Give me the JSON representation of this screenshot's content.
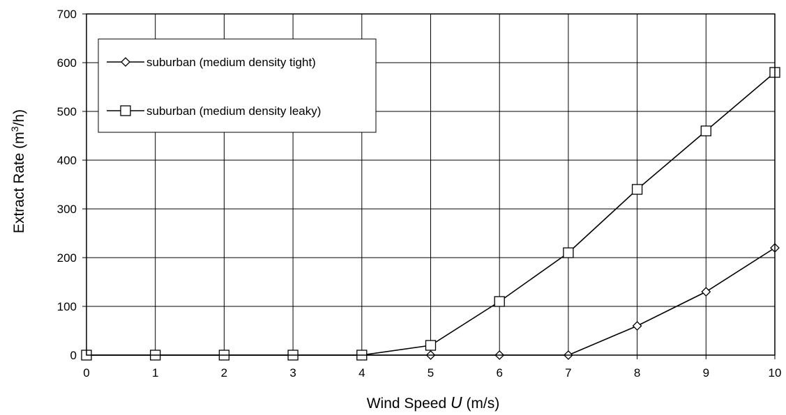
{
  "chart_data": {
    "type": "line",
    "title": "",
    "xlabel": {
      "prefix": "Wind Speed ",
      "symbol": "U",
      "suffix": " (m/s)"
    },
    "ylabel": {
      "prefix": "Extract Rate (m",
      "superscript": "3",
      "suffix": "/h)"
    },
    "xlim": [
      0,
      10
    ],
    "ylim": [
      0,
      700
    ],
    "x_ticks": [
      "0",
      "1",
      "2",
      "3",
      "4",
      "5",
      "6",
      "7",
      "8",
      "9",
      "10"
    ],
    "y_ticks": [
      "0",
      "100",
      "200",
      "300",
      "400",
      "500",
      "600",
      "700"
    ],
    "grid": true,
    "legend_position": "top-left",
    "x": [
      0,
      1,
      2,
      3,
      4,
      5,
      6,
      7,
      8,
      9,
      10
    ],
    "series": [
      {
        "name": "suburban (medium density tight)",
        "marker": "diamond",
        "color": "#000000",
        "values": [
          0,
          0,
          0,
          0,
          0,
          0,
          0,
          0,
          60,
          130,
          220
        ]
      },
      {
        "name": "suburban (medium density leaky)",
        "marker": "square",
        "color": "#000000",
        "values": [
          0,
          0,
          0,
          0,
          0,
          20,
          110,
          210,
          340,
          460,
          580
        ]
      }
    ]
  }
}
